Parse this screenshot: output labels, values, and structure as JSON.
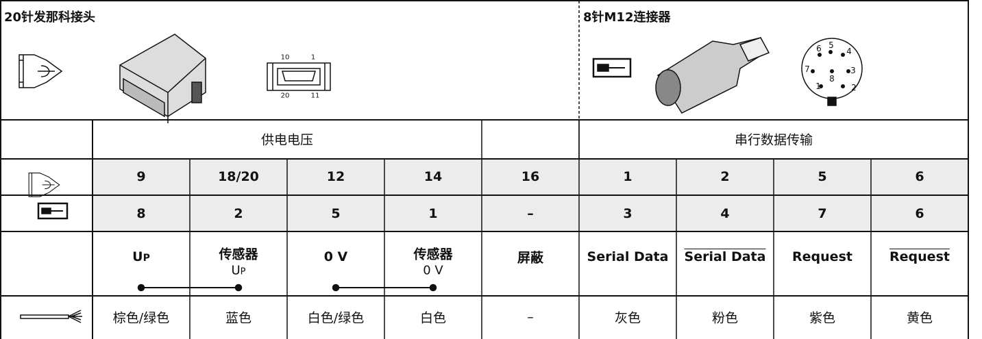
{
  "header": {
    "left_title": "20针发那科接头",
    "right_title": "8针M12连接器",
    "fanuc_diagram_labels": [
      "10",
      "1",
      "20",
      "11"
    ],
    "m12_pin_labels": [
      "1",
      "2",
      "3",
      "4",
      "5",
      "6",
      "7",
      "8"
    ]
  },
  "groups": [
    "供电电压",
    "串行数据传输"
  ],
  "fanuc_pins": [
    "9",
    "18/20",
    "12",
    "14",
    "16",
    "1",
    "2",
    "5",
    "6"
  ],
  "m12_pins": [
    "8",
    "2",
    "5",
    "1",
    "–",
    "3",
    "4",
    "7",
    "6"
  ],
  "signals": [
    {
      "text": "U",
      "sub": "P"
    },
    {
      "text": "传感器",
      "line2": "U",
      "line2_sub": "P"
    },
    {
      "text": "0 V"
    },
    {
      "text": "传感器",
      "line2": "0 V"
    },
    {
      "text": "屏蔽"
    },
    {
      "text": "Serial Data"
    },
    {
      "text": "Serial Data",
      "overline": true
    },
    {
      "text": "Request"
    },
    {
      "text": "Request",
      "overline": true
    }
  ],
  "wire_colors": [
    "棕色/绿色",
    "蓝色",
    "白色/绿色",
    "白色",
    "–",
    "灰色",
    "粉色",
    "紫色",
    "黄色"
  ]
}
